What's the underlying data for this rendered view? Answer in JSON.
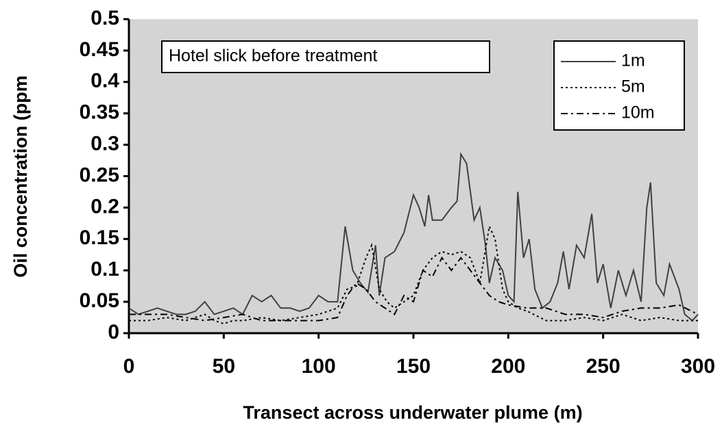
{
  "chart_data": {
    "type": "line",
    "annotation": "Hotel slick before treatment",
    "xlabel": "Transect across underwater plume (m)",
    "ylabel": "Oil concentration (ppm",
    "xlim": [
      0,
      300
    ],
    "xticks": [
      0,
      50,
      100,
      150,
      200,
      250,
      300
    ],
    "ylim": [
      0,
      0.5
    ],
    "yticks": [
      0,
      0.05,
      0.1,
      0.15,
      0.2,
      0.25,
      0.3,
      0.35,
      0.4,
      0.45,
      0.5
    ],
    "background": "#d4d4d4",
    "legend": "upper right",
    "series": [
      {
        "name": "1m",
        "color": "#404040",
        "style": "solid",
        "x": [
          0,
          5,
          10,
          15,
          20,
          25,
          30,
          35,
          40,
          45,
          50,
          55,
          60,
          65,
          70,
          75,
          80,
          85,
          90,
          95,
          100,
          105,
          110,
          114,
          118,
          122,
          126,
          130,
          132,
          135,
          140,
          145,
          150,
          153,
          156,
          158,
          160,
          165,
          170,
          173,
          175,
          178,
          182,
          185,
          188,
          190,
          193,
          197,
          200,
          203,
          205,
          208,
          211,
          214,
          218,
          222,
          226,
          229,
          232,
          236,
          240,
          244,
          247,
          250,
          254,
          258,
          262,
          266,
          270,
          273,
          275,
          278,
          282,
          285,
          290,
          293,
          297,
          300
        ],
        "values": [
          0.04,
          0.03,
          0.035,
          0.04,
          0.035,
          0.03,
          0.03,
          0.035,
          0.05,
          0.03,
          0.035,
          0.04,
          0.03,
          0.06,
          0.05,
          0.06,
          0.04,
          0.04,
          0.035,
          0.04,
          0.06,
          0.05,
          0.05,
          0.17,
          0.1,
          0.08,
          0.065,
          0.14,
          0.06,
          0.12,
          0.13,
          0.16,
          0.22,
          0.2,
          0.17,
          0.22,
          0.18,
          0.18,
          0.2,
          0.21,
          0.285,
          0.27,
          0.18,
          0.2,
          0.14,
          0.08,
          0.12,
          0.1,
          0.06,
          0.05,
          0.225,
          0.12,
          0.15,
          0.07,
          0.04,
          0.05,
          0.08,
          0.13,
          0.07,
          0.14,
          0.12,
          0.19,
          0.08,
          0.11,
          0.04,
          0.1,
          0.06,
          0.1,
          0.05,
          0.2,
          0.24,
          0.08,
          0.06,
          0.11,
          0.07,
          0.03,
          0.02,
          0.03
        ]
      },
      {
        "name": "5m",
        "color": "#000000",
        "style": "dotted",
        "x": [
          0,
          10,
          20,
          30,
          40,
          45,
          50,
          55,
          60,
          70,
          80,
          90,
          100,
          105,
          110,
          115,
          120,
          125,
          128,
          132,
          136,
          140,
          145,
          150,
          155,
          160,
          165,
          170,
          175,
          180,
          185,
          190,
          193,
          197,
          200,
          205,
          210,
          220,
          230,
          240,
          250,
          260,
          270,
          280,
          290,
          300
        ],
        "values": [
          0.02,
          0.02,
          0.025,
          0.02,
          0.03,
          0.02,
          0.015,
          0.02,
          0.02,
          0.025,
          0.02,
          0.025,
          0.03,
          0.035,
          0.04,
          0.07,
          0.075,
          0.12,
          0.14,
          0.07,
          0.05,
          0.04,
          0.05,
          0.06,
          0.1,
          0.12,
          0.13,
          0.125,
          0.13,
          0.12,
          0.08,
          0.17,
          0.15,
          0.07,
          0.05,
          0.04,
          0.035,
          0.02,
          0.02,
          0.025,
          0.02,
          0.03,
          0.02,
          0.025,
          0.02,
          0.02
        ]
      },
      {
        "name": "10m",
        "color": "#000000",
        "style": "dashdot",
        "x": [
          0,
          10,
          20,
          30,
          40,
          50,
          60,
          70,
          80,
          90,
          100,
          110,
          115,
          120,
          125,
          130,
          135,
          140,
          145,
          150,
          155,
          160,
          165,
          170,
          175,
          180,
          185,
          190,
          195,
          200,
          210,
          220,
          230,
          240,
          250,
          260,
          270,
          280,
          290,
          300
        ],
        "values": [
          0.03,
          0.03,
          0.03,
          0.025,
          0.02,
          0.025,
          0.03,
          0.02,
          0.02,
          0.02,
          0.02,
          0.025,
          0.06,
          0.08,
          0.07,
          0.05,
          0.04,
          0.03,
          0.06,
          0.05,
          0.1,
          0.09,
          0.12,
          0.1,
          0.12,
          0.1,
          0.08,
          0.06,
          0.05,
          0.045,
          0.04,
          0.04,
          0.03,
          0.03,
          0.025,
          0.035,
          0.04,
          0.04,
          0.045,
          0.03
        ]
      }
    ]
  }
}
